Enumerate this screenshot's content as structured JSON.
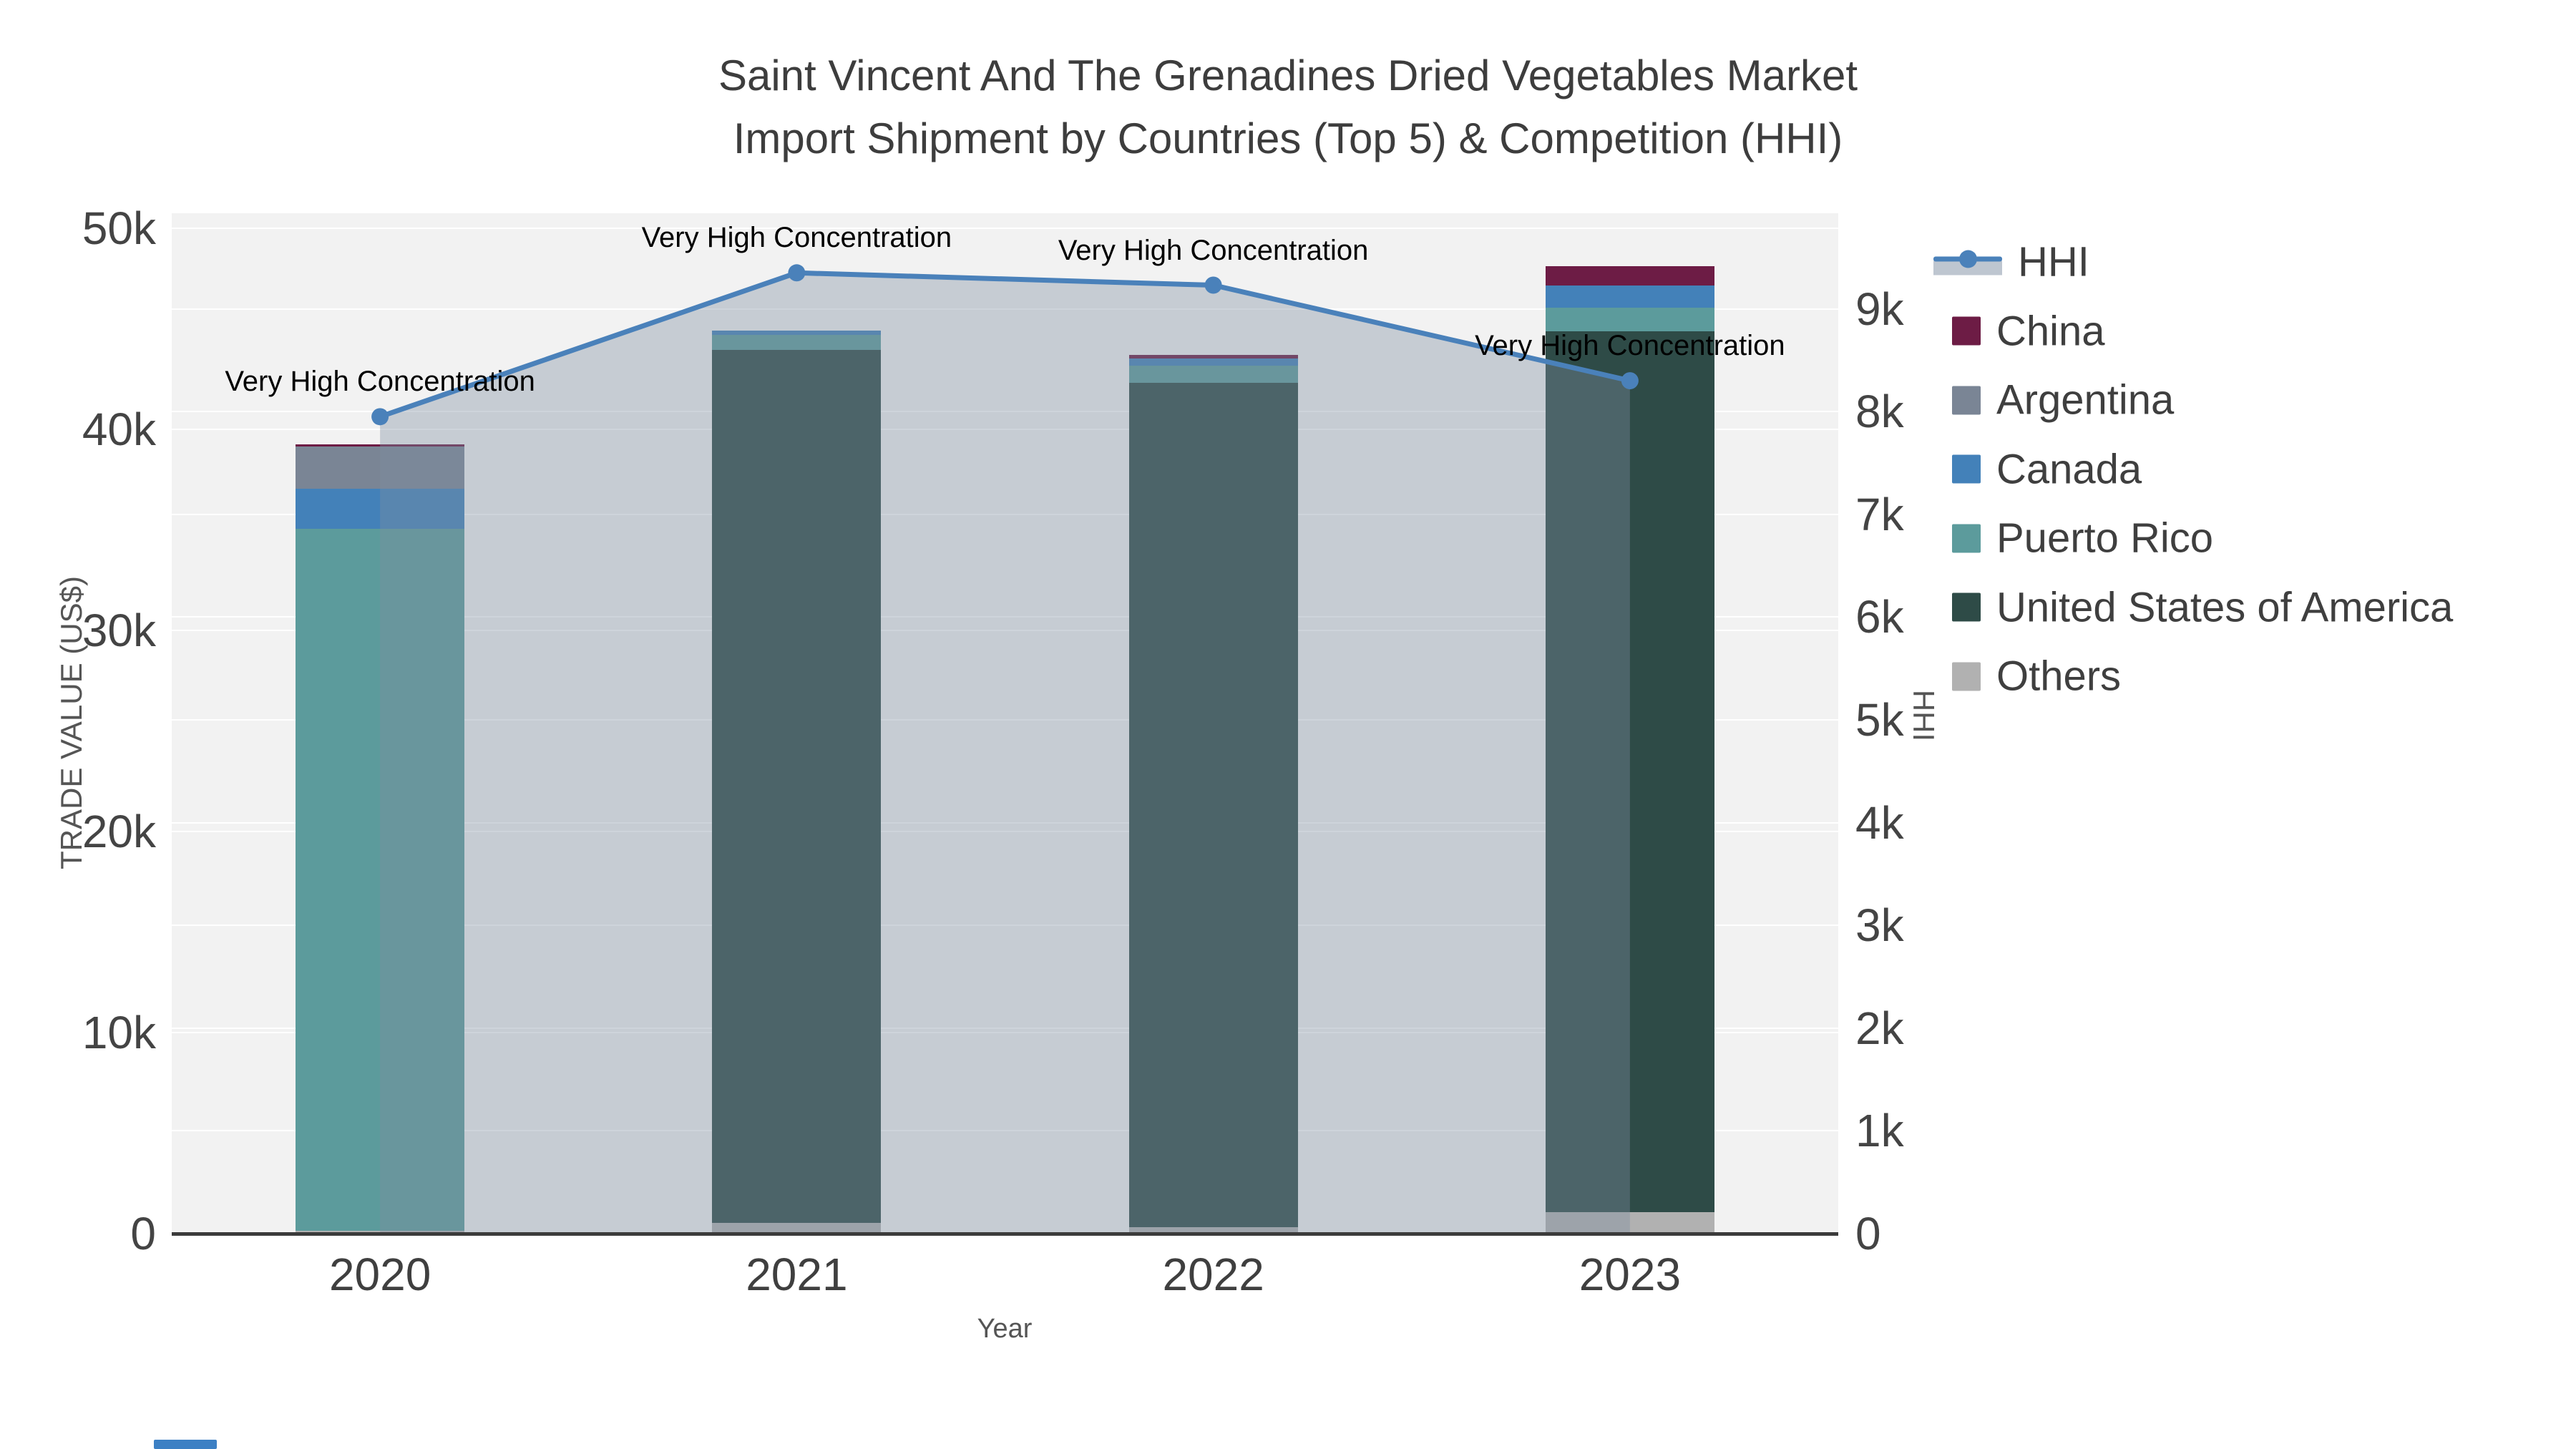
{
  "title": {
    "line1": "Saint Vincent And The Grenadines Dried Vegetables Market",
    "line2": "Import Shipment by Countries (Top 5) & Competition (HHI)"
  },
  "axes": {
    "x": {
      "title": "Year",
      "categories": [
        "2020",
        "2021",
        "2022",
        "2023"
      ]
    },
    "y_left": {
      "title": "TRADE VALUE (US$)",
      "tick_values": [
        0,
        10000,
        20000,
        30000,
        40000,
        50000
      ],
      "tick_labels": [
        "0",
        "10k",
        "20k",
        "30k",
        "40k",
        "50k"
      ],
      "max": 50750
    },
    "y_right": {
      "title": "HHI",
      "tick_values": [
        0,
        1000,
        2000,
        3000,
        4000,
        5000,
        6000,
        7000,
        8000,
        9000
      ],
      "tick_labels": [
        "0",
        "1k",
        "2k",
        "3k",
        "4k",
        "5k",
        "6k",
        "7k",
        "8k",
        "9k"
      ],
      "max": 9930
    }
  },
  "chart_data": {
    "type": "bar",
    "subtype": "stacked-bars-with-line-overlay",
    "categories": [
      "2020",
      "2021",
      "2022",
      "2023"
    ],
    "series": [
      {
        "name": "Others",
        "color": "#b1b1b1",
        "values": [
          150,
          550,
          330,
          1050
        ]
      },
      {
        "name": "United States of America",
        "color": "#2e4b47",
        "values": [
          0,
          43400,
          41970,
          43820
        ]
      },
      {
        "name": "Puerto Rico",
        "color": "#5c9b9c",
        "values": [
          34900,
          750,
          865,
          1190
        ]
      },
      {
        "name": "Canada",
        "color": "#4381b9",
        "values": [
          2000,
          200,
          355,
          1090
        ]
      },
      {
        "name": "Argentina",
        "color": "#7a8595",
        "values": [
          2100,
          0,
          0,
          0
        ]
      },
      {
        "name": "China",
        "color": "#6d1c45",
        "values": [
          100,
          0,
          180,
          950
        ]
      }
    ],
    "line_series": {
      "name": "HHI",
      "axis": "right",
      "color": "#4a81ba",
      "fill_color": "rgba(126,142,161,0.38)",
      "values": [
        7950,
        9350,
        9230,
        8300
      ]
    },
    "annotations": [
      {
        "text": "Very High Concentration",
        "category_index": 0
      },
      {
        "text": "Very High Concentration",
        "category_index": 1
      },
      {
        "text": "Very High Concentration",
        "category_index": 2
      },
      {
        "text": "Very High Concentration",
        "category_index": 3
      }
    ],
    "ylabel_left": "TRADE VALUE (US$)",
    "ylabel_right": "HHI",
    "xlabel": "Year",
    "ylim_left": [
      0,
      50750
    ],
    "ylim_right": [
      0,
      9930
    ],
    "grid": true,
    "legend_position": "right"
  },
  "legend": {
    "items": [
      {
        "label": "HHI",
        "swatch": "line",
        "color": "#4a81ba"
      },
      {
        "label": "China",
        "swatch": "square",
        "color": "#6d1c45"
      },
      {
        "label": "Argentina",
        "swatch": "square",
        "color": "#7a8595"
      },
      {
        "label": "Canada",
        "swatch": "square",
        "color": "#4381b9"
      },
      {
        "label": "Puerto Rico",
        "swatch": "square",
        "color": "#5c9b9c"
      },
      {
        "label": "United States of America",
        "swatch": "square",
        "color": "#2e4b47"
      },
      {
        "label": "Others",
        "swatch": "square",
        "color": "#b1b1b1"
      }
    ]
  }
}
